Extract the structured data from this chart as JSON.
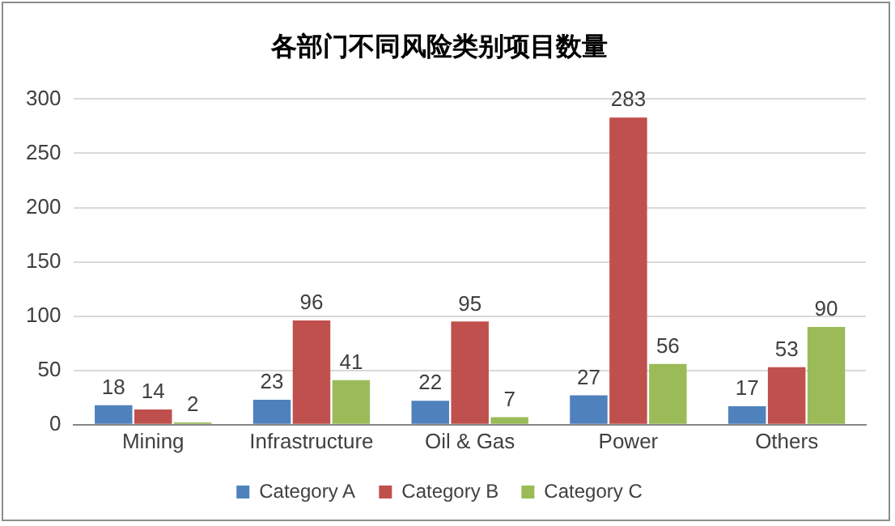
{
  "chart_data": {
    "type": "bar",
    "title": "各部门不同风险类别项目数量",
    "categories": [
      "Mining",
      "Infrastructure",
      "Oil & Gas",
      "Power",
      "Others"
    ],
    "series": [
      {
        "name": "Category A",
        "color": "#4f81bd",
        "values": [
          18,
          23,
          22,
          27,
          17
        ]
      },
      {
        "name": "Category B",
        "color": "#c0504d",
        "values": [
          14,
          96,
          95,
          283,
          53
        ]
      },
      {
        "name": "Category C",
        "color": "#9bbb59",
        "values": [
          2,
          41,
          7,
          56,
          90
        ]
      }
    ],
    "ylim": [
      0,
      300
    ],
    "yticks": [
      0,
      50,
      100,
      150,
      200,
      250,
      300
    ],
    "grid": "y",
    "legend": "bottom",
    "data_labels": true
  }
}
